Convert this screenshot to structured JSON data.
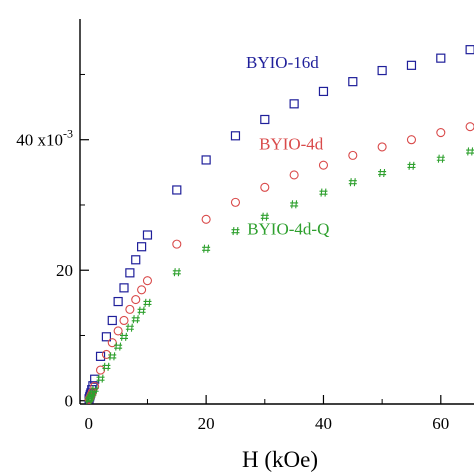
{
  "chart_data": {
    "type": "scatter",
    "xlabel": "H (kOe)",
    "ylabel": "",
    "xlim": [
      -1.5,
      66
    ],
    "ylim": [
      -0.5,
      58.5
    ],
    "x_ticks": [
      0,
      20,
      40,
      60
    ],
    "y_ticks": [
      {
        "value": 0,
        "label": "0"
      },
      {
        "value": 20,
        "label": "20"
      },
      {
        "value": 40,
        "label": "40 x10",
        "exponent": "-3"
      }
    ],
    "grid": false,
    "series": [
      {
        "name": "BYIO-16d",
        "marker": "square",
        "color": "#1f1f9a",
        "points": [
          [
            0.05,
            0.3
          ],
          [
            0.15,
            0.6
          ],
          [
            0.25,
            0.9
          ],
          [
            0.35,
            1.2
          ],
          [
            0.5,
            1.7
          ],
          [
            0.7,
            2.3
          ],
          [
            1.0,
            3.3
          ],
          [
            2.0,
            6.8
          ],
          [
            3.0,
            9.8
          ],
          [
            4.0,
            12.3
          ],
          [
            5.0,
            15.2
          ],
          [
            6.0,
            17.3
          ],
          [
            7.0,
            19.6
          ],
          [
            8.0,
            21.6
          ],
          [
            9.0,
            23.6
          ],
          [
            10.0,
            25.4
          ],
          [
            15.0,
            32.3
          ],
          [
            20.0,
            36.9
          ],
          [
            25.0,
            40.6
          ],
          [
            30.0,
            43.1
          ],
          [
            35.0,
            45.5
          ],
          [
            40.0,
            47.4
          ],
          [
            45.0,
            48.9
          ],
          [
            50.0,
            50.6
          ],
          [
            55.0,
            51.4
          ],
          [
            60.0,
            52.5
          ],
          [
            65.0,
            53.8
          ]
        ]
      },
      {
        "name": "BYIO-4d",
        "marker": "circle",
        "color": "#d94a4a",
        "points": [
          [
            0.05,
            0.2
          ],
          [
            0.15,
            0.4
          ],
          [
            0.25,
            0.6
          ],
          [
            0.4,
            0.9
          ],
          [
            0.6,
            1.3
          ],
          [
            1.0,
            2.2
          ],
          [
            2.0,
            4.7
          ],
          [
            3.0,
            7.1
          ],
          [
            4.0,
            8.9
          ],
          [
            5.0,
            10.7
          ],
          [
            6.0,
            12.3
          ],
          [
            7.0,
            14.0
          ],
          [
            8.0,
            15.5
          ],
          [
            9.0,
            17.0
          ],
          [
            10.0,
            18.4
          ],
          [
            15.0,
            24.0
          ],
          [
            20.0,
            27.8
          ],
          [
            25.0,
            30.4
          ],
          [
            30.0,
            32.7
          ],
          [
            35.0,
            34.6
          ],
          [
            40.0,
            36.1
          ],
          [
            45.0,
            37.6
          ],
          [
            50.0,
            38.9
          ],
          [
            55.0,
            40.0
          ],
          [
            60.0,
            41.1
          ],
          [
            65.0,
            42.0
          ]
        ]
      },
      {
        "name": "BYIO-4d-Q",
        "marker": "hash",
        "color": "#2ea02e",
        "points": [
          [
            0.05,
            0.1
          ],
          [
            0.15,
            0.3
          ],
          [
            0.25,
            0.5
          ],
          [
            0.4,
            0.8
          ],
          [
            0.6,
            1.1
          ],
          [
            1.0,
            1.7
          ],
          [
            2.0,
            3.4
          ],
          [
            3.0,
            5.2
          ],
          [
            4.0,
            6.8
          ],
          [
            5.0,
            8.3
          ],
          [
            6.0,
            9.8
          ],
          [
            7.0,
            11.2
          ],
          [
            8.0,
            12.5
          ],
          [
            9.0,
            13.8
          ],
          [
            10.0,
            15.0
          ],
          [
            15.0,
            19.7
          ],
          [
            20.0,
            23.3
          ],
          [
            25.0,
            26.0
          ],
          [
            30.0,
            28.2
          ],
          [
            35.0,
            30.1
          ],
          [
            40.0,
            31.9
          ],
          [
            45.0,
            33.5
          ],
          [
            50.0,
            34.9
          ],
          [
            55.0,
            36.0
          ],
          [
            60.0,
            37.1
          ],
          [
            65.0,
            38.2
          ]
        ]
      }
    ],
    "annotations": [
      {
        "text": "BYIO-16d",
        "series": 0,
        "x": 33,
        "y": 51
      },
      {
        "text": "BYIO-4d",
        "series": 1,
        "x": 34.5,
        "y": 38.5
      },
      {
        "text": "BYIO-4d-Q",
        "series": 2,
        "x": 34,
        "y": 25.5
      }
    ]
  }
}
